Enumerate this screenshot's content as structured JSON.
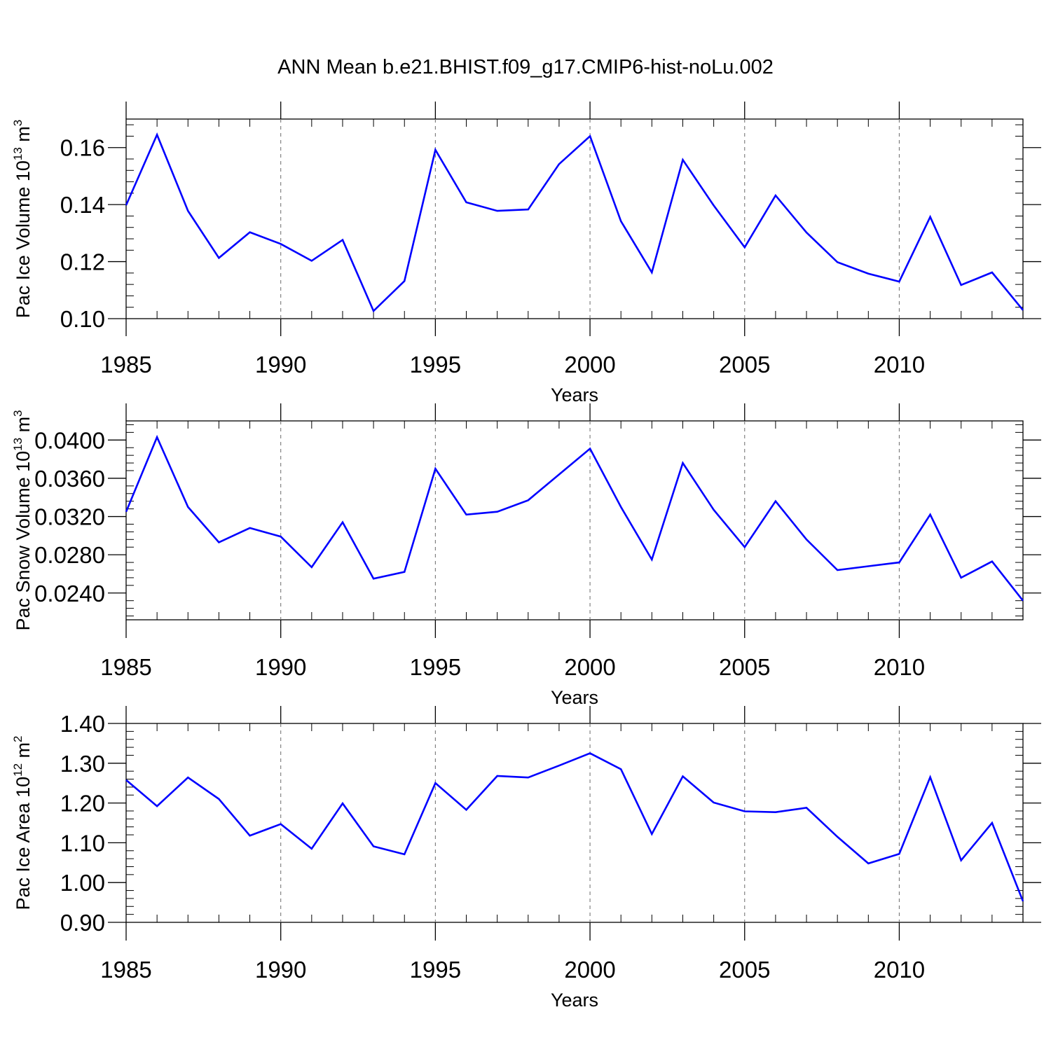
{
  "title": "ANN Mean b.e21.BHIST.f09_g17.CMIP6-hist-noLu.002",
  "chart_data": [
    {
      "type": "line",
      "title": "ANN Mean b.e21.BHIST.f09_g17.CMIP6-hist-noLu.002",
      "xlabel": "Years",
      "ylabel_main": "Pac Ice Volume 10",
      "ylabel_exp": "13",
      "ylabel_unit": " m",
      "ylabel_unit_exp": "3",
      "xlim": [
        1985,
        2014
      ],
      "ylim": [
        0.1,
        0.17
      ],
      "xticks": [
        1985,
        1990,
        1995,
        2000,
        2005,
        2010
      ],
      "xtick_labels": [
        "1985",
        "1990",
        "1995",
        "2000",
        "2005",
        "2010"
      ],
      "yticks": [
        0.1,
        0.12,
        0.14,
        0.16
      ],
      "ytick_labels": [
        "0.10",
        "0.12",
        "0.14",
        "0.16"
      ],
      "ytick_step": 0.02,
      "yminor_step": 0.004,
      "grid": "vertical dashed at major x ticks",
      "series": [
        {
          "name": "Pac Ice Volume",
          "color": "#0000ff",
          "x": [
            1985,
            1986,
            1987,
            1988,
            1989,
            1990,
            1991,
            1992,
            1993,
            1994,
            1995,
            1996,
            1997,
            1998,
            1999,
            2000,
            2001,
            2002,
            2003,
            2004,
            2005,
            2006,
            2007,
            2008,
            2009,
            2010,
            2011,
            2012,
            2013,
            2014
          ],
          "values": [
            0.1398,
            0.1645,
            0.1378,
            0.1213,
            0.1303,
            0.1262,
            0.1203,
            0.1276,
            0.1027,
            0.1132,
            0.1592,
            0.1408,
            0.1378,
            0.1383,
            0.1542,
            0.164,
            0.1342,
            0.1162,
            0.1557,
            0.1397,
            0.125,
            0.1432,
            0.1302,
            0.1198,
            0.1158,
            0.113,
            0.1357,
            0.1118,
            0.1162,
            0.103
          ]
        }
      ]
    },
    {
      "type": "line",
      "xlabel": "Years",
      "ylabel_main": "Pac Snow Volume 10",
      "ylabel_exp": "13",
      "ylabel_unit": " m",
      "ylabel_unit_exp": "3",
      "xlim": [
        1985,
        2014
      ],
      "ylim": [
        0.0212,
        0.042
      ],
      "xticks": [
        1985,
        1990,
        1995,
        2000,
        2005,
        2010
      ],
      "xtick_labels": [
        "1985",
        "1990",
        "1995",
        "2000",
        "2005",
        "2010"
      ],
      "yticks": [
        0.024,
        0.028,
        0.032,
        0.036,
        0.04
      ],
      "ytick_labels": [
        "0.0240",
        "0.0280",
        "0.0320",
        "0.0360",
        "0.0400"
      ],
      "ytick_step": 0.004,
      "yminor_step": 0.0008,
      "grid": "vertical dashed at major x ticks",
      "series": [
        {
          "name": "Pac Snow Volume",
          "color": "#0000ff",
          "x": [
            1985,
            1986,
            1987,
            1988,
            1989,
            1990,
            1991,
            1992,
            1993,
            1994,
            1995,
            1996,
            1997,
            1998,
            1999,
            2000,
            2001,
            2002,
            2003,
            2004,
            2005,
            2006,
            2007,
            2008,
            2009,
            2010,
            2011,
            2012,
            2013,
            2014
          ],
          "values": [
            0.0325,
            0.0403,
            0.033,
            0.0293,
            0.0308,
            0.0299,
            0.0267,
            0.0314,
            0.0255,
            0.0262,
            0.037,
            0.0322,
            0.0325,
            0.0337,
            0.0364,
            0.0391,
            0.033,
            0.0275,
            0.0376,
            0.0327,
            0.0288,
            0.0336,
            0.0296,
            0.0264,
            0.0268,
            0.0272,
            0.0322,
            0.0256,
            0.0273,
            0.0232
          ]
        }
      ]
    },
    {
      "type": "line",
      "xlabel": "Years",
      "ylabel_main": "Pac Ice Area 10",
      "ylabel_exp": "12",
      "ylabel_unit": " m",
      "ylabel_unit_exp": "2",
      "xlim": [
        1985,
        2014
      ],
      "ylim": [
        0.9,
        1.4
      ],
      "xticks": [
        1985,
        1990,
        1995,
        2000,
        2005,
        2010
      ],
      "xtick_labels": [
        "1985",
        "1990",
        "1995",
        "2000",
        "2005",
        "2010"
      ],
      "yticks": [
        0.9,
        1.0,
        1.1,
        1.2,
        1.3,
        1.4
      ],
      "ytick_labels": [
        "0.90",
        "1.00",
        "1.10",
        "1.20",
        "1.30",
        "1.40"
      ],
      "ytick_step": 0.1,
      "yminor_step": 0.02,
      "grid": "vertical dashed at major x ticks",
      "series": [
        {
          "name": "Pac Ice Area",
          "color": "#0000ff",
          "x": [
            1985,
            1986,
            1987,
            1988,
            1989,
            1990,
            1991,
            1992,
            1993,
            1994,
            1995,
            1996,
            1997,
            1998,
            1999,
            2000,
            2001,
            2002,
            2003,
            2004,
            2005,
            2006,
            2007,
            2008,
            2009,
            2010,
            2011,
            2012,
            2013,
            2014
          ],
          "values": [
            1.258,
            1.192,
            1.264,
            1.21,
            1.118,
            1.147,
            1.085,
            1.199,
            1.091,
            1.071,
            1.25,
            1.183,
            1.268,
            1.264,
            1.294,
            1.325,
            1.285,
            1.122,
            1.267,
            1.201,
            1.179,
            1.177,
            1.188,
            1.115,
            1.048,
            1.072,
            1.265,
            1.056,
            1.15,
            0.953
          ]
        }
      ]
    }
  ]
}
